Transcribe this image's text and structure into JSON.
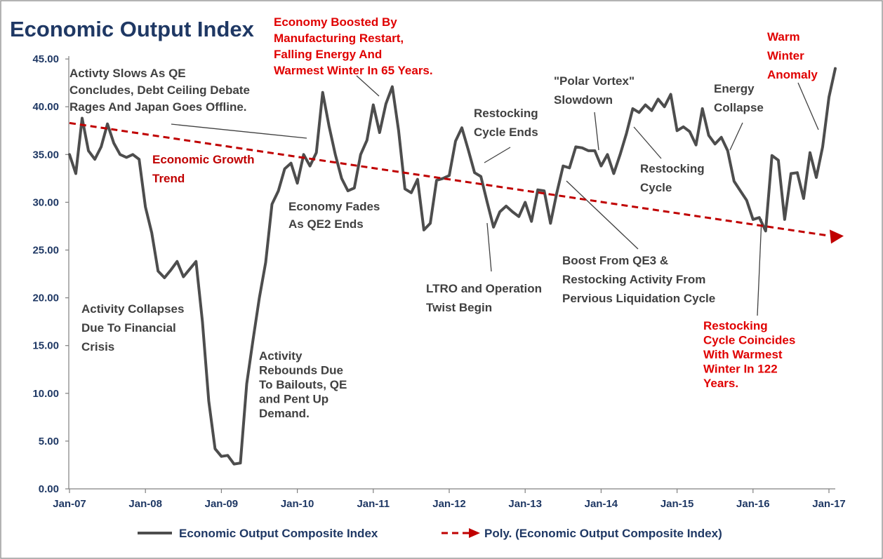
{
  "chart_data": {
    "type": "line",
    "title": "Economic Output Index",
    "ylim": [
      0,
      45
    ],
    "y_ticks": [
      "0.00",
      "5.00",
      "10.00",
      "15.00",
      "20.00",
      "25.00",
      "30.00",
      "35.00",
      "40.00",
      "45.00"
    ],
    "x_ticks": [
      "Jan-07",
      "Jan-08",
      "Jan-09",
      "Jan-10",
      "Jan-11",
      "Jan-12",
      "Jan-13",
      "Jan-14",
      "Jan-15",
      "Jan-16",
      "Jan-17"
    ],
    "x_range": [
      "2007-01",
      "2017-01"
    ],
    "grid": false,
    "legend_position": "bottom",
    "series": [
      {
        "name": "Economic Output Composite Index",
        "color": "#4d4d4d",
        "style": "solid",
        "points": [
          [
            "2007-01",
            35.0
          ],
          [
            "2007-02",
            33.0
          ],
          [
            "2007-03",
            38.8
          ],
          [
            "2007-04",
            35.4
          ],
          [
            "2007-05",
            34.5
          ],
          [
            "2007-06",
            35.8
          ],
          [
            "2007-07",
            38.2
          ],
          [
            "2007-08",
            36.2
          ],
          [
            "2007-09",
            35.0
          ],
          [
            "2007-10",
            34.7
          ],
          [
            "2007-11",
            35.0
          ],
          [
            "2007-12",
            34.5
          ],
          [
            "2008-01",
            29.5
          ],
          [
            "2008-02",
            26.8
          ],
          [
            "2008-03",
            22.8
          ],
          [
            "2008-04",
            22.1
          ],
          [
            "2008-05",
            22.9
          ],
          [
            "2008-06",
            23.8
          ],
          [
            "2008-07",
            22.2
          ],
          [
            "2008-08",
            23.0
          ],
          [
            "2008-09",
            23.8
          ],
          [
            "2008-10",
            17.5
          ],
          [
            "2008-11",
            9.2
          ],
          [
            "2008-12",
            4.2
          ],
          [
            "2009-01",
            3.4
          ],
          [
            "2009-02",
            3.5
          ],
          [
            "2009-03",
            2.6
          ],
          [
            "2009-04",
            2.7
          ],
          [
            "2009-05",
            11.0
          ],
          [
            "2009-06",
            15.6
          ],
          [
            "2009-07",
            20.0
          ],
          [
            "2009-08",
            23.7
          ],
          [
            "2009-09",
            29.8
          ],
          [
            "2009-10",
            31.2
          ],
          [
            "2009-11",
            33.5
          ],
          [
            "2009-12",
            34.1
          ],
          [
            "2010-01",
            32.0
          ],
          [
            "2010-02",
            35.0
          ],
          [
            "2010-03",
            33.8
          ],
          [
            "2010-04",
            35.2
          ],
          [
            "2010-05",
            41.5
          ],
          [
            "2010-06",
            38.0
          ],
          [
            "2010-07",
            35.0
          ],
          [
            "2010-08",
            32.5
          ],
          [
            "2010-09",
            31.2
          ],
          [
            "2010-10",
            31.5
          ],
          [
            "2010-11",
            35.0
          ],
          [
            "2010-12",
            36.5
          ],
          [
            "2011-01",
            40.2
          ],
          [
            "2011-02",
            37.3
          ],
          [
            "2011-03",
            40.3
          ],
          [
            "2011-04",
            42.1
          ],
          [
            "2011-05",
            37.5
          ],
          [
            "2011-06",
            31.4
          ],
          [
            "2011-07",
            31.0
          ],
          [
            "2011-08",
            32.4
          ],
          [
            "2011-09",
            27.1
          ],
          [
            "2011-10",
            27.8
          ],
          [
            "2011-11",
            32.3
          ],
          [
            "2011-12",
            32.5
          ],
          [
            "2012-01",
            32.8
          ],
          [
            "2012-02",
            36.4
          ],
          [
            "2012-03",
            37.8
          ],
          [
            "2012-04",
            35.5
          ],
          [
            "2012-05",
            33.1
          ],
          [
            "2012-06",
            32.7
          ],
          [
            "2012-07",
            30.0
          ],
          [
            "2012-08",
            27.4
          ],
          [
            "2012-09",
            29.0
          ],
          [
            "2012-10",
            29.6
          ],
          [
            "2012-11",
            29.0
          ],
          [
            "2012-12",
            28.5
          ],
          [
            "2013-01",
            30.0
          ],
          [
            "2013-02",
            28.0
          ],
          [
            "2013-03",
            31.3
          ],
          [
            "2013-04",
            31.2
          ],
          [
            "2013-05",
            27.8
          ],
          [
            "2013-06",
            31.0
          ],
          [
            "2013-07",
            33.8
          ],
          [
            "2013-08",
            33.6
          ],
          [
            "2013-09",
            35.8
          ],
          [
            "2013-10",
            35.7
          ],
          [
            "2013-11",
            35.4
          ],
          [
            "2013-12",
            35.4
          ],
          [
            "2014-01",
            33.8
          ],
          [
            "2014-02",
            35.0
          ],
          [
            "2014-03",
            33.0
          ],
          [
            "2014-04",
            35.0
          ],
          [
            "2014-05",
            37.2
          ],
          [
            "2014-06",
            39.8
          ],
          [
            "2014-07",
            39.4
          ],
          [
            "2014-08",
            40.2
          ],
          [
            "2014-09",
            39.6
          ],
          [
            "2014-10",
            40.8
          ],
          [
            "2014-11",
            40.0
          ],
          [
            "2014-12",
            41.3
          ],
          [
            "2015-01",
            37.5
          ],
          [
            "2015-02",
            37.9
          ],
          [
            "2015-03",
            37.4
          ],
          [
            "2015-04",
            36.0
          ],
          [
            "2015-05",
            39.8
          ],
          [
            "2015-06",
            37.0
          ],
          [
            "2015-07",
            36.1
          ],
          [
            "2015-08",
            36.8
          ],
          [
            "2015-09",
            35.4
          ],
          [
            "2015-10",
            32.2
          ],
          [
            "2015-11",
            31.2
          ],
          [
            "2015-12",
            30.2
          ],
          [
            "2016-01",
            28.2
          ],
          [
            "2016-02",
            28.4
          ],
          [
            "2016-03",
            27.0
          ],
          [
            "2016-04",
            34.9
          ],
          [
            "2016-05",
            34.4
          ],
          [
            "2016-06",
            28.2
          ],
          [
            "2016-07",
            33.0
          ],
          [
            "2016-08",
            33.1
          ],
          [
            "2016-09",
            30.4
          ],
          [
            "2016-10",
            35.2
          ],
          [
            "2016-11",
            32.6
          ],
          [
            "2016-12",
            35.8
          ],
          [
            "2017-01",
            41.0
          ],
          [
            "2017-02",
            44.0
          ]
        ]
      },
      {
        "name": "Poly. (Economic Output Composite Index)",
        "color": "#c00000",
        "style": "dashed",
        "points": [
          [
            "2007-01",
            38.3
          ],
          [
            "2017-02",
            26.4
          ]
        ]
      }
    ],
    "annotations": [
      {
        "id": "boosted",
        "lines": [
          "Economy Boosted By",
          "Manufacturing Restart,",
          "Falling Energy And",
          "Warmest Winter In 65 Years."
        ],
        "color": "red"
      },
      {
        "id": "qe-concludes",
        "lines": [
          "Activty Slows As QE",
          "Concludes, Debt Ceiling Debate",
          "Rages And Japan Goes Offline."
        ],
        "color": "dark"
      },
      {
        "id": "growth-trend",
        "lines": [
          "Economic Growth",
          "Trend"
        ],
        "color": "darkred"
      },
      {
        "id": "qe2-ends",
        "lines": [
          "Economy Fades",
          "As QE2 Ends"
        ],
        "color": "dark"
      },
      {
        "id": "restocking-ends",
        "lines": [
          "Restocking",
          "Cycle Ends"
        ],
        "color": "dark"
      },
      {
        "id": "polar-vortex",
        "lines": [
          "\"Polar Vortex\"",
          "Slowdown"
        ],
        "color": "dark"
      },
      {
        "id": "restocking-cycle",
        "lines": [
          "Restocking",
          "Cycle"
        ],
        "color": "dark"
      },
      {
        "id": "energy-collapse",
        "lines": [
          "Energy",
          "Collapse"
        ],
        "color": "dark"
      },
      {
        "id": "warm-winter",
        "lines": [
          "Warm",
          "Winter",
          "Anomaly"
        ],
        "color": "red"
      },
      {
        "id": "financial-crisis",
        "lines": [
          "Activity Collapses",
          "Due To Financial",
          "Crisis"
        ],
        "color": "dark"
      },
      {
        "id": "rebounds",
        "lines": [
          "Activity",
          "Rebounds Due",
          "To Bailouts, QE",
          "and Pent Up",
          "Demand."
        ],
        "color": "dark"
      },
      {
        "id": "ltro",
        "lines": [
          "LTRO and Operation",
          "Twist Begin"
        ],
        "color": "dark"
      },
      {
        "id": "qe3",
        "lines": [
          "Boost From QE3 &",
          "Restocking Activity From",
          "Pervious Liquidation Cycle"
        ],
        "color": "dark"
      },
      {
        "id": "restocking-coincides",
        "lines": [
          "Restocking",
          "Cycle Coincides",
          "With Warmest",
          "Winter In 122",
          "Years."
        ],
        "color": "red"
      }
    ]
  }
}
